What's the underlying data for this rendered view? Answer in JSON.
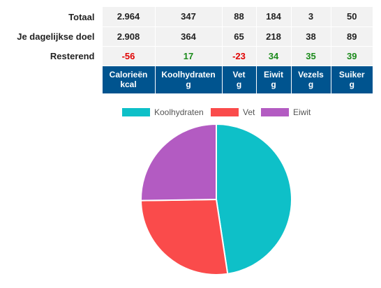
{
  "rows": [
    {
      "label": "Totaal",
      "values": [
        "2.964",
        "347",
        "88",
        "184",
        "3",
        "50"
      ]
    },
    {
      "label": "Je dagelijkse doel",
      "values": [
        "2.908",
        "364",
        "65",
        "218",
        "38",
        "89"
      ]
    },
    {
      "label": "Resterend",
      "values": [
        "-56",
        "17",
        "-23",
        "34",
        "35",
        "39"
      ]
    }
  ],
  "columns": [
    {
      "name": "Calorieën",
      "unit": "kcal"
    },
    {
      "name": "Koolhydraten",
      "unit": "g"
    },
    {
      "name": "Vet",
      "unit": "g"
    },
    {
      "name": "Eiwit",
      "unit": "g"
    },
    {
      "name": "Vezels",
      "unit": "g"
    },
    {
      "name": "Suiker",
      "unit": "g"
    }
  ],
  "colors": {
    "header": "#00548f",
    "negative": "#e00000",
    "positive": "#1a8a1a"
  },
  "chart_data": {
    "type": "pie",
    "legend_position": "top",
    "series": [
      {
        "name": "Koolhydraten",
        "value": 347,
        "color": "#0ec0c8"
      },
      {
        "name": "Vet",
        "value": 198,
        "color": "#fa4b4b"
      },
      {
        "name": "Eiwit",
        "value": 184,
        "color": "#b35bc2"
      }
    ]
  }
}
